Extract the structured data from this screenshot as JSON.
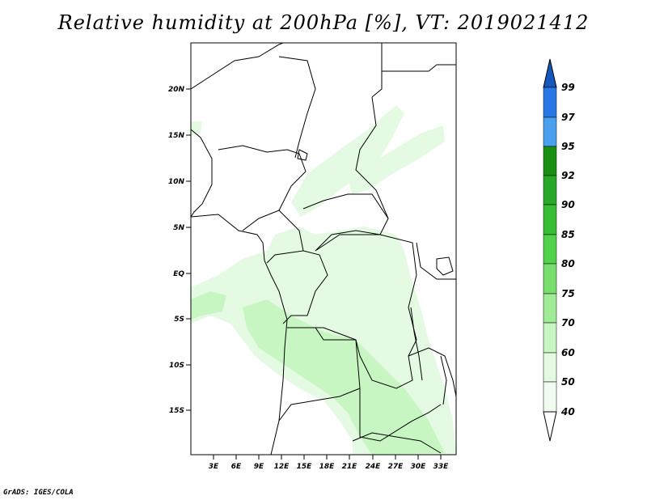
{
  "title": "Relative humidity at 200hPa [%], VT: 2019021412",
  "credit": "GrADS: IGES/COLA",
  "map": {
    "lat_labels": [
      "20N",
      "15N",
      "10N",
      "5N",
      "EQ",
      "5S",
      "10S",
      "15S"
    ],
    "lon_labels": [
      "3E",
      "6E",
      "9E",
      "12E",
      "15E",
      "18E",
      "21E",
      "24E",
      "27E",
      "30E",
      "33E"
    ],
    "lat_range": [
      -20,
      25
    ],
    "lon_range": [
      0,
      35
    ]
  },
  "colorbar": {
    "levels": [
      "40",
      "50",
      "60",
      "70",
      "75",
      "80",
      "85",
      "90",
      "92",
      "95",
      "97",
      "99"
    ],
    "colors": [
      "#ffffff",
      "#f0fcf0",
      "#e4fae2",
      "#c8f6c2",
      "#a0eb96",
      "#78df6e",
      "#50d24a",
      "#38be34",
      "#28aa28",
      "#1a9012",
      "#48a0ee",
      "#2878e6",
      "#1458be"
    ]
  },
  "fill_colors": {
    "light": "#e4fae2",
    "mid": "#c8f6c2"
  }
}
